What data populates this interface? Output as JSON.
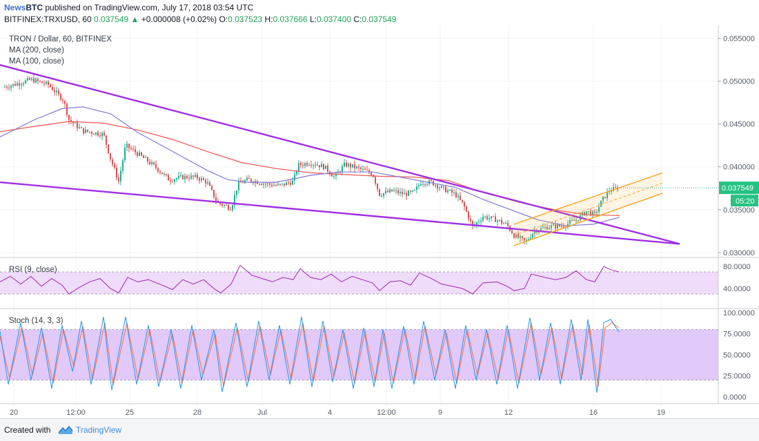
{
  "header": {
    "publisher_a": "News",
    "publisher_b": "BTC",
    "published_text": " published on TradingView.com, July 17, 2018 03:54 UTC",
    "symbol_line": "BITFINEX:TRXUSD, 60",
    "last": "0.037549",
    "change": "+0.000008 (+0.02%)",
    "o_label": "O:",
    "o_value": "0.037523",
    "h_label": "H:",
    "h_value": "0.037666",
    "l_label": "L:",
    "l_value": "0.037400",
    "c_label": "C:",
    "c_value": "0.037549",
    "up_arrow": "▲"
  },
  "footer": {
    "created_with": "Created with",
    "brand": "TradingView"
  },
  "colors": {
    "candle_up": "#22ab94",
    "candle_down": "#e04d4d",
    "ma200": "#ef5350",
    "ma100": "#7e7ad6",
    "trendline": "#9f2fe6",
    "channel": "#f5a623",
    "rsi": "#9c27b0",
    "stoch_k": "#2196f3",
    "stoch_d": "#ff7043",
    "band_fill": "#efdcfa",
    "stoch_fill": "#e1c9fa",
    "axis_text": "#555b66"
  },
  "chart_data": [
    {
      "type": "candlestick",
      "title": "TRON / Dollar, 60, BITFINEX",
      "legend": [
        "MA (200, close)",
        "MA (100, close)"
      ],
      "ylim": [
        0.0295,
        0.0565
      ],
      "y_ticks": [
        "0.055000",
        "0.050000",
        "0.045000",
        "0.040000",
        "0.035000",
        "0.030000"
      ],
      "y_tick_values": [
        0.055,
        0.05,
        0.045,
        0.04,
        0.035,
        0.03
      ],
      "x_tick_labels": [
        "20",
        "12:00",
        "25",
        "28",
        "Jul",
        "4",
        "12:00",
        "9",
        "12",
        "16",
        "19"
      ],
      "last_price_label": "0.037549",
      "countdown_label": "05:20",
      "close_path": [
        [
          0,
          0.0492
        ],
        [
          20,
          0.0496
        ],
        [
          45,
          0.0502
        ],
        [
          70,
          0.0496
        ],
        [
          92,
          0.0478
        ],
        [
          100,
          0.0455
        ],
        [
          120,
          0.0442
        ],
        [
          150,
          0.0438
        ],
        [
          160,
          0.041
        ],
        [
          172,
          0.0383
        ],
        [
          182,
          0.0425
        ],
        [
          200,
          0.0415
        ],
        [
          225,
          0.04
        ],
        [
          245,
          0.0385
        ],
        [
          265,
          0.0388
        ],
        [
          285,
          0.0388
        ],
        [
          300,
          0.0382
        ],
        [
          315,
          0.0358
        ],
        [
          335,
          0.0352
        ],
        [
          345,
          0.038
        ],
        [
          360,
          0.0385
        ],
        [
          385,
          0.038
        ],
        [
          405,
          0.0378
        ],
        [
          425,
          0.0383
        ],
        [
          432,
          0.0402
        ],
        [
          450,
          0.0405
        ],
        [
          470,
          0.04
        ],
        [
          485,
          0.0388
        ],
        [
          500,
          0.0403
        ],
        [
          520,
          0.0398
        ],
        [
          540,
          0.0392
        ],
        [
          550,
          0.0368
        ],
        [
          570,
          0.0372
        ],
        [
          585,
          0.0368
        ],
        [
          600,
          0.037
        ],
        [
          610,
          0.0382
        ],
        [
          625,
          0.0382
        ],
        [
          640,
          0.0375
        ],
        [
          660,
          0.0368
        ],
        [
          672,
          0.0355
        ],
        [
          685,
          0.033
        ],
        [
          700,
          0.0342
        ],
        [
          720,
          0.0338
        ],
        [
          735,
          0.0332
        ],
        [
          745,
          0.032
        ],
        [
          762,
          0.0312
        ],
        [
          775,
          0.0326
        ],
        [
          795,
          0.033
        ],
        [
          815,
          0.0331
        ],
        [
          835,
          0.0338
        ],
        [
          850,
          0.0348
        ],
        [
          862,
          0.0344
        ],
        [
          872,
          0.036
        ],
        [
          882,
          0.0372
        ],
        [
          897,
          0.0376
        ]
      ],
      "ma200_path": [
        [
          0,
          0.0441
        ],
        [
          40,
          0.0446
        ],
        [
          100,
          0.0453
        ],
        [
          150,
          0.0451
        ],
        [
          200,
          0.0443
        ],
        [
          250,
          0.0432
        ],
        [
          300,
          0.0418
        ],
        [
          350,
          0.0405
        ],
        [
          400,
          0.0398
        ],
        [
          450,
          0.0393
        ],
        [
          500,
          0.0391
        ],
        [
          550,
          0.0389
        ],
        [
          600,
          0.0388
        ],
        [
          650,
          0.0384
        ],
        [
          700,
          0.037
        ],
        [
          760,
          0.0357
        ],
        [
          810,
          0.0349
        ],
        [
          850,
          0.0344
        ],
        [
          898,
          0.0343
        ]
      ],
      "ma100_path": [
        [
          0,
          0.0435
        ],
        [
          50,
          0.0455
        ],
        [
          90,
          0.0468
        ],
        [
          120,
          0.047
        ],
        [
          160,
          0.0462
        ],
        [
          200,
          0.044
        ],
        [
          250,
          0.0418
        ],
        [
          300,
          0.0396
        ],
        [
          330,
          0.0385
        ],
        [
          360,
          0.0382
        ],
        [
          400,
          0.0382
        ],
        [
          450,
          0.039
        ],
        [
          490,
          0.0394
        ],
        [
          540,
          0.0394
        ],
        [
          580,
          0.0388
        ],
        [
          620,
          0.0382
        ],
        [
          660,
          0.0376
        ],
        [
          700,
          0.0362
        ],
        [
          740,
          0.035
        ],
        [
          780,
          0.0338
        ],
        [
          820,
          0.0331
        ],
        [
          860,
          0.0333
        ],
        [
          898,
          0.0341
        ]
      ],
      "trendlines": [
        {
          "name": "upper",
          "from": [
            0,
            0.0519
          ],
          "to": [
            985,
            0.031
          ]
        },
        {
          "name": "lower",
          "from": [
            0,
            0.0382
          ],
          "to": [
            985,
            0.031
          ]
        }
      ],
      "channel": {
        "upper": {
          "from": [
            745,
            0.0333
          ],
          "to": [
            960,
            0.0393
          ]
        },
        "mid": {
          "from": [
            745,
            0.032
          ],
          "to": [
            960,
            0.0381
          ]
        },
        "lower": {
          "from": [
            745,
            0.0308
          ],
          "to": [
            960,
            0.0369
          ]
        }
      }
    },
    {
      "type": "line",
      "title": "RSI (9, close)",
      "ylim": [
        5,
        95
      ],
      "y_ticks": [
        "80.0000",
        "40.0000"
      ],
      "y_tick_values": [
        80,
        40
      ],
      "band": [
        70,
        30
      ],
      "path": [
        [
          0,
          52
        ],
        [
          15,
          62
        ],
        [
          30,
          48
        ],
        [
          45,
          62
        ],
        [
          60,
          44
        ],
        [
          75,
          58
        ],
        [
          90,
          46
        ],
        [
          100,
          30
        ],
        [
          115,
          42
        ],
        [
          130,
          52
        ],
        [
          145,
          58
        ],
        [
          160,
          40
        ],
        [
          172,
          32
        ],
        [
          185,
          60
        ],
        [
          200,
          52
        ],
        [
          215,
          56
        ],
        [
          235,
          46
        ],
        [
          250,
          38
        ],
        [
          265,
          56
        ],
        [
          280,
          48
        ],
        [
          295,
          56
        ],
        [
          312,
          38
        ],
        [
          320,
          32
        ],
        [
          335,
          48
        ],
        [
          348,
          82
        ],
        [
          365,
          64
        ],
        [
          380,
          58
        ],
        [
          395,
          52
        ],
        [
          410,
          60
        ],
        [
          425,
          56
        ],
        [
          435,
          76
        ],
        [
          450,
          60
        ],
        [
          465,
          56
        ],
        [
          480,
          66
        ],
        [
          495,
          52
        ],
        [
          510,
          62
        ],
        [
          525,
          56
        ],
        [
          540,
          50
        ],
        [
          550,
          36
        ],
        [
          565,
          52
        ],
        [
          580,
          54
        ],
        [
          595,
          46
        ],
        [
          608,
          68
        ],
        [
          625,
          58
        ],
        [
          640,
          48
        ],
        [
          655,
          44
        ],
        [
          670,
          40
        ],
        [
          685,
          30
        ],
        [
          700,
          50
        ],
        [
          720,
          52
        ],
        [
          735,
          44
        ],
        [
          745,
          36
        ],
        [
          760,
          40
        ],
        [
          770,
          66
        ],
        [
          790,
          60
        ],
        [
          805,
          56
        ],
        [
          820,
          60
        ],
        [
          835,
          72
        ],
        [
          850,
          56
        ],
        [
          862,
          52
        ],
        [
          875,
          80
        ],
        [
          885,
          74
        ],
        [
          897,
          70
        ]
      ]
    },
    {
      "type": "line",
      "title": "Stoch (14, 3, 3)",
      "ylim": [
        -8,
        104
      ],
      "y_ticks": [
        "100.0000",
        "75.0000",
        "50.0000",
        "25.0000",
        "0.0000"
      ],
      "y_tick_values": [
        100,
        75,
        50,
        25,
        0
      ],
      "band": [
        80,
        20
      ],
      "series": [
        {
          "name": "%K",
          "path": [
            [
              0,
              78
            ],
            [
              12,
              15
            ],
            [
              30,
              88
            ],
            [
              45,
              20
            ],
            [
              60,
              82
            ],
            [
              75,
              10
            ],
            [
              90,
              85
            ],
            [
              105,
              30
            ],
            [
              118,
              90
            ],
            [
              132,
              15
            ],
            [
              150,
              95
            ],
            [
              162,
              8
            ],
            [
              182,
              95
            ],
            [
              198,
              15
            ],
            [
              215,
              85
            ],
            [
              230,
              12
            ],
            [
              248,
              80
            ],
            [
              262,
              10
            ],
            [
              278,
              85
            ],
            [
              292,
              20
            ],
            [
              310,
              80
            ],
            [
              322,
              6
            ],
            [
              342,
              88
            ],
            [
              358,
              12
            ],
            [
              375,
              90
            ],
            [
              390,
              20
            ],
            [
              405,
              85
            ],
            [
              420,
              15
            ],
            [
              437,
              95
            ],
            [
              452,
              12
            ],
            [
              468,
              90
            ],
            [
              482,
              18
            ],
            [
              497,
              80
            ],
            [
              512,
              10
            ],
            [
              527,
              82
            ],
            [
              542,
              12
            ],
            [
              555,
              80
            ],
            [
              568,
              10
            ],
            [
              585,
              84
            ],
            [
              600,
              15
            ],
            [
              614,
              90
            ],
            [
              630,
              20
            ],
            [
              645,
              80
            ],
            [
              660,
              10
            ],
            [
              675,
              85
            ],
            [
              690,
              20
            ],
            [
              705,
              80
            ],
            [
              720,
              15
            ],
            [
              735,
              85
            ],
            [
              750,
              10
            ],
            [
              768,
              94
            ],
            [
              782,
              20
            ],
            [
              798,
              88
            ],
            [
              812,
              15
            ],
            [
              828,
              92
            ],
            [
              842,
              20
            ],
            [
              852,
              92
            ],
            [
              865,
              5
            ],
            [
              875,
              88
            ],
            [
              885,
              92
            ],
            [
              897,
              77
            ]
          ]
        },
        {
          "name": "%D",
          "path": [
            [
              0,
              72
            ],
            [
              14,
              22
            ],
            [
              32,
              82
            ],
            [
              47,
              26
            ],
            [
              62,
              76
            ],
            [
              77,
              16
            ],
            [
              92,
              80
            ],
            [
              107,
              36
            ],
            [
              120,
              84
            ],
            [
              134,
              21
            ],
            [
              152,
              88
            ],
            [
              164,
              14
            ],
            [
              184,
              88
            ],
            [
              200,
              21
            ],
            [
              217,
              80
            ],
            [
              232,
              18
            ],
            [
              250,
              75
            ],
            [
              264,
              16
            ],
            [
              280,
              80
            ],
            [
              294,
              26
            ],
            [
              312,
              75
            ],
            [
              324,
              12
            ],
            [
              344,
              82
            ],
            [
              360,
              18
            ],
            [
              377,
              84
            ],
            [
              392,
              26
            ],
            [
              407,
              80
            ],
            [
              422,
              21
            ],
            [
              439,
              88
            ],
            [
              454,
              18
            ],
            [
              470,
              84
            ],
            [
              484,
              24
            ],
            [
              499,
              76
            ],
            [
              514,
              16
            ],
            [
              529,
              78
            ],
            [
              544,
              18
            ],
            [
              557,
              76
            ],
            [
              570,
              16
            ],
            [
              587,
              80
            ],
            [
              602,
              21
            ],
            [
              616,
              84
            ],
            [
              632,
              26
            ],
            [
              647,
              76
            ],
            [
              662,
              16
            ],
            [
              677,
              80
            ],
            [
              692,
              26
            ],
            [
              707,
              76
            ],
            [
              722,
              21
            ],
            [
              737,
              80
            ],
            [
              752,
              16
            ],
            [
              770,
              88
            ],
            [
              784,
              26
            ],
            [
              800,
              82
            ],
            [
              814,
              21
            ],
            [
              830,
              86
            ],
            [
              844,
              26
            ],
            [
              854,
              86
            ],
            [
              867,
              12
            ],
            [
              877,
              82
            ],
            [
              887,
              88
            ],
            [
              897,
              82
            ]
          ]
        }
      ]
    }
  ]
}
